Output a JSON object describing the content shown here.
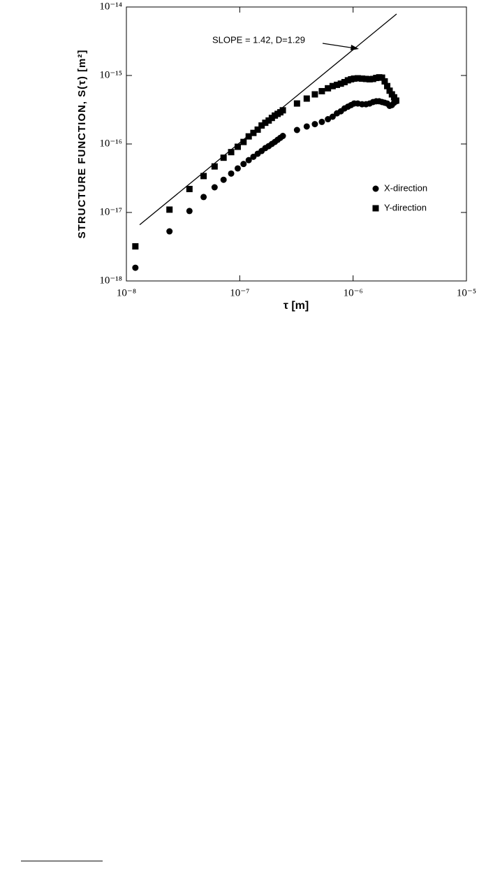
{
  "chart_data": {
    "type": "scatter",
    "x_label": "τ [m]",
    "y_label": "STRUCTURE FUNCTION, S(τ) [m²]",
    "annotation": "SLOPE = 1.42, D=1.29",
    "x_log": true,
    "y_log": true,
    "xlim": [
      1e-08,
      1e-05
    ],
    "ylim": [
      1e-18,
      1e-14
    ],
    "xticks": [
      {
        "value": 1e-08,
        "label": "10⁻⁸"
      },
      {
        "value": 1e-07,
        "label": "10⁻⁷"
      },
      {
        "value": 1e-06,
        "label": "10⁻⁶"
      },
      {
        "value": 1e-05,
        "label": "10⁻⁵"
      }
    ],
    "yticks": [
      {
        "value": 1e-18,
        "label": "10⁻¹⁸"
      },
      {
        "value": 1e-17,
        "label": "10⁻¹⁷"
      },
      {
        "value": 1e-16,
        "label": "10⁻¹⁶"
      },
      {
        "value": 1e-15,
        "label": "10⁻¹⁵"
      },
      {
        "value": 1e-14,
        "label": "10⁻¹⁴"
      }
    ],
    "legend": "right",
    "fit_line": {
      "color": "#000000",
      "x": [
        1.31e-08,
        2.42e-06
      ],
      "y": [
        6.6e-18,
        7.9e-15
      ]
    },
    "series": [
      {
        "name": "X-direction",
        "color": "#000000",
        "marker": "circle",
        "x": [
          1.2e-08,
          2.4e-08,
          3.6e-08,
          4.8e-08,
          6e-08,
          7.2e-08,
          8.4e-08,
          9.6e-08,
          1.08e-07,
          1.2e-07,
          1.32e-07,
          1.44e-07,
          1.56e-07,
          1.68e-07,
          1.8e-07,
          1.92e-07,
          2.04e-07,
          2.16e-07,
          2.28e-07,
          2.4e-07,
          3.2e-07,
          3.9e-07,
          4.6e-07,
          5.3e-07,
          6e-07,
          6.6e-07,
          7.2e-07,
          7.8e-07,
          8.4e-07,
          9e-07,
          9.6e-07,
          1.02e-06,
          1.1e-06,
          1.2e-06,
          1.3e-06,
          1.4e-06,
          1.5e-06,
          1.6e-06,
          1.7e-06,
          1.8e-06,
          1.9e-06,
          2e-06,
          2.1e-06,
          2.2e-06,
          2.3e-06,
          2.4e-06
        ],
        "values": [
          1.56e-18,
          5.3e-18,
          1.05e-17,
          1.68e-17,
          2.33e-17,
          3e-17,
          3.7e-17,
          4.4e-17,
          5.1e-17,
          5.8e-17,
          6.5e-17,
          7.2e-17,
          7.9e-17,
          8.7e-17,
          9.3e-17,
          1e-16,
          1.07e-16,
          1.15e-16,
          1.23e-16,
          1.31e-16,
          1.6e-16,
          1.8e-16,
          1.95e-16,
          2.1e-16,
          2.3e-16,
          2.5e-16,
          2.8e-16,
          3e-16,
          3.3e-16,
          3.5e-16,
          3.7e-16,
          3.9e-16,
          3.9e-16,
          3.8e-16,
          3.8e-16,
          3.9e-16,
          4.1e-16,
          4.2e-16,
          4.2e-16,
          4.1e-16,
          4e-16,
          3.9e-16,
          3.6e-16,
          3.7e-16,
          4e-16,
          4.2e-16
        ]
      },
      {
        "name": "Y-direction",
        "color": "#000000",
        "marker": "square",
        "x": [
          1.2e-08,
          2.4e-08,
          3.6e-08,
          4.8e-08,
          6e-08,
          7.2e-08,
          8.4e-08,
          9.6e-08,
          1.08e-07,
          1.2e-07,
          1.32e-07,
          1.44e-07,
          1.56e-07,
          1.68e-07,
          1.8e-07,
          1.92e-07,
          2.04e-07,
          2.16e-07,
          2.28e-07,
          2.4e-07,
          3.2e-07,
          3.9e-07,
          4.6e-07,
          5.3e-07,
          6e-07,
          6.6e-07,
          7.2e-07,
          7.8e-07,
          8.4e-07,
          9e-07,
          9.6e-07,
          1.02e-06,
          1.1e-06,
          1.2e-06,
          1.3e-06,
          1.4e-06,
          1.5e-06,
          1.6e-06,
          1.7e-06,
          1.8e-06,
          1.9e-06,
          2e-06,
          2.1e-06,
          2.2e-06,
          2.3e-06,
          2.4e-06
        ],
        "values": [
          3.2e-18,
          1.1e-17,
          2.2e-17,
          3.4e-17,
          4.7e-17,
          6.3e-17,
          7.6e-17,
          9.1e-17,
          1.07e-16,
          1.29e-16,
          1.45e-16,
          1.62e-16,
          1.86e-16,
          2.04e-16,
          2.2e-16,
          2.4e-16,
          2.6e-16,
          2.75e-16,
          2.9e-16,
          3.1e-16,
          3.9e-16,
          4.6e-16,
          5.3e-16,
          5.9e-16,
          6.5e-16,
          7e-16,
          7.3e-16,
          7.6e-16,
          8e-16,
          8.5e-16,
          8.8e-16,
          9e-16,
          9.1e-16,
          9e-16,
          8.9e-16,
          8.8e-16,
          8.9e-16,
          9.2e-16,
          9.4e-16,
          9.3e-16,
          8.2e-16,
          7e-16,
          6e-16,
          5.3e-16,
          4.8e-16,
          4.3e-16
        ]
      }
    ]
  }
}
